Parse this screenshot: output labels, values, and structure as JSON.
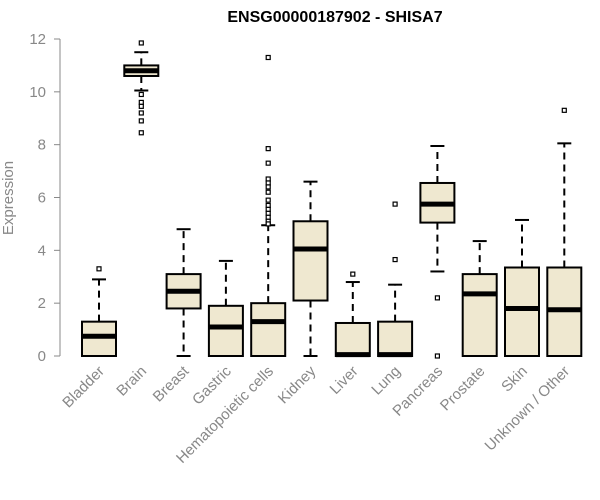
{
  "chart_data": {
    "type": "boxplot",
    "title": "ENSG00000187902 - SHISA7",
    "ylabel": "Expression",
    "xlabel": "",
    "ylim": [
      0,
      12
    ],
    "yticks": [
      0,
      2,
      4,
      6,
      8,
      10,
      12
    ],
    "box_fill": "#efe8d0",
    "categories": [
      "Bladder",
      "Brain",
      "Breast",
      "Gastric",
      "Hematopoietic cells",
      "Kidney",
      "Liver",
      "Lung",
      "Pancreas",
      "Prostate",
      "Skin",
      "Unknown / Other"
    ],
    "boxes": [
      {
        "category": "Bladder",
        "min": 0,
        "q1": 0,
        "median": 0.75,
        "q3": 1.3,
        "max": 2.9,
        "outliers": [
          3.3
        ]
      },
      {
        "category": "Brain",
        "min": 10.05,
        "q1": 10.6,
        "median": 10.8,
        "q3": 11.0,
        "max": 11.5,
        "outliers": [
          11.85,
          9.9,
          9.6,
          9.45,
          9.2,
          8.9,
          8.45
        ]
      },
      {
        "category": "Breast",
        "min": 0,
        "q1": 1.8,
        "median": 2.45,
        "q3": 3.1,
        "max": 4.8,
        "outliers": []
      },
      {
        "category": "Gastric",
        "min": 0,
        "q1": 0,
        "median": 1.1,
        "q3": 1.9,
        "max": 3.6,
        "outliers": []
      },
      {
        "category": "Hematopoietic cells",
        "min": 0,
        "q1": 0,
        "median": 1.3,
        "q3": 2.0,
        "max": 4.95,
        "outliers": [
          11.3,
          7.85,
          7.3,
          6.7,
          6.55,
          6.4,
          6.2,
          5.9,
          5.7,
          5.55,
          5.4,
          5.25,
          5.1,
          5.0
        ]
      },
      {
        "category": "Kidney",
        "min": 0,
        "q1": 2.1,
        "median": 4.05,
        "q3": 5.1,
        "max": 6.6,
        "outliers": []
      },
      {
        "category": "Liver",
        "min": 0,
        "q1": 0,
        "median": 0.05,
        "q3": 1.25,
        "max": 2.8,
        "outliers": [
          3.1
        ]
      },
      {
        "category": "Lung",
        "min": 0,
        "q1": 0,
        "median": 0.05,
        "q3": 1.3,
        "max": 2.7,
        "outliers": [
          5.75,
          3.65
        ]
      },
      {
        "category": "Pancreas",
        "min": 3.2,
        "q1": 5.05,
        "median": 5.75,
        "q3": 6.55,
        "max": 7.95,
        "outliers": [
          2.2,
          0.0
        ]
      },
      {
        "category": "Prostate",
        "min": 0,
        "q1": 0,
        "median": 2.35,
        "q3": 3.1,
        "max": 4.35,
        "outliers": []
      },
      {
        "category": "Skin",
        "min": 0,
        "q1": 0,
        "median": 1.8,
        "q3": 3.35,
        "max": 5.15,
        "outliers": []
      },
      {
        "category": "Unknown / Other",
        "min": 0,
        "q1": 0,
        "median": 1.75,
        "q3": 3.35,
        "max": 8.05,
        "outliers": [
          9.3
        ]
      }
    ]
  }
}
